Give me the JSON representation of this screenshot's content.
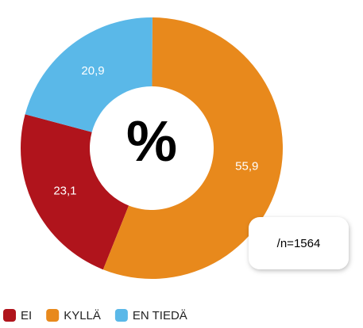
{
  "chart_data": {
    "type": "donut",
    "categories": [
      "EI",
      "KYLLÄ",
      "EN TIEDÄ"
    ],
    "values": [
      23.1,
      55.9,
      20.9
    ],
    "value_labels": [
      "23,1",
      "55,9",
      "20,9"
    ],
    "colors": [
      "#b0141c",
      "#e8891c",
      "#5ab8e8"
    ],
    "center_label": "%",
    "annotation": "/n=1564",
    "legend": "bottom-left"
  }
}
